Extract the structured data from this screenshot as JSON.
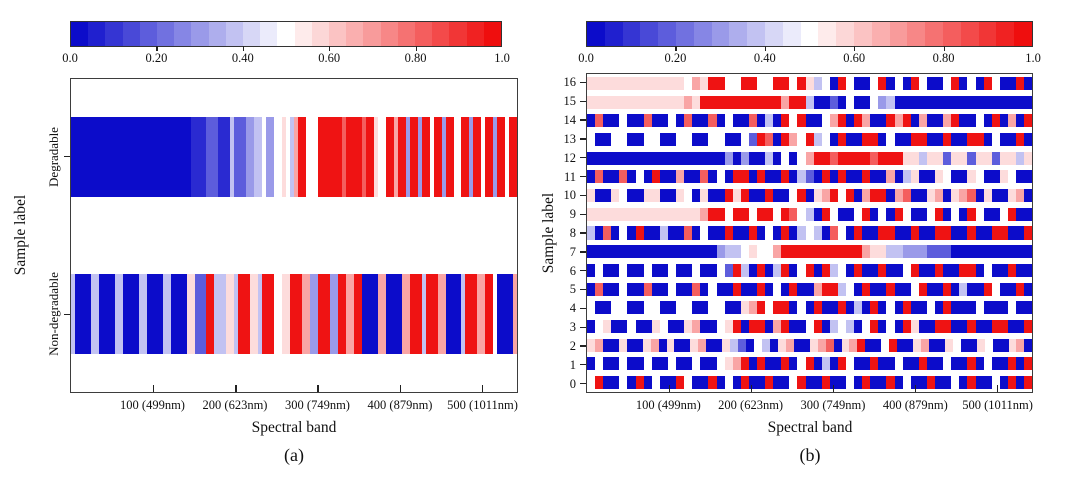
{
  "figure_title": "",
  "chart_data": [
    {
      "type": "heatmap",
      "panel": "a",
      "caption": "(a)",
      "xlabel": "Spectral band",
      "ylabel": "Sample label",
      "x_range": [
        0,
        543
      ],
      "x_tick_positions": [
        100,
        200,
        300,
        400,
        500
      ],
      "x_tick_labels": [
        "100 (499nm)",
        "200 (623nm)",
        "300 (749nm)",
        "400 (879nm)",
        "500 (1011nm)"
      ],
      "grid": false,
      "legend_position": "top-colorbar",
      "colorbar": {
        "min": 0.0,
        "max": 1.0,
        "levels": 25,
        "tick_values": [
          0.0,
          0.2,
          0.4,
          0.6,
          0.8,
          1.0
        ],
        "tick_labels": [
          "0.0",
          "0.20",
          "0.40",
          "0.60",
          "0.80",
          "1.0"
        ]
      },
      "colormap": {
        "name": "blue-white-red",
        "stops": [
          [
            0.0,
            "#0202C8"
          ],
          [
            0.5,
            "#FFFFFF"
          ],
          [
            1.0,
            "#EE0404"
          ]
        ]
      },
      "value_key": {
        "B": 0.02,
        "d": 0.08,
        "b": 0.18,
        "m": 0.3,
        "l": 0.38,
        "w": 0.5,
        "p": 0.57,
        "o": 0.68,
        "r": 0.82,
        "q": 0.9,
        "R": 0.97
      },
      "rows": [
        {
          "label": "Degradable",
          "pattern": "BBBBBBBBBBBBBBBBBBBBBBBBBBBBBBddddbbbdddlbbbmmllwmmwwpwloRRwwwRRRRRRrRRRRrRRpwwRRoRRmRRmRRwRRmRRwwRRmRRwRRmRRwRR"
        },
        {
          "label": "Non-degradable",
          "pattern": "lBBBBllBBBBllBBBBllBBBBllBBBBppbbbRRlllpplRRRpplRRRwwppRRRoommRRRmmRRooRRBBBBooBBBBooRRRlRRRooBBBBlRRRooRRwBBBBo"
        }
      ]
    },
    {
      "type": "heatmap",
      "panel": "b",
      "caption": "(b)",
      "xlabel": "Spectral band",
      "ylabel": "Sample label",
      "x_range": [
        0,
        543
      ],
      "x_tick_positions": [
        100,
        200,
        300,
        400,
        500
      ],
      "x_tick_labels": [
        "100 (499nm)",
        "200 (623nm)",
        "300 (749nm)",
        "400 (879nm)",
        "500 (1011nm)"
      ],
      "grid": false,
      "legend_position": "top-colorbar",
      "colorbar": {
        "min": 0.0,
        "max": 1.0,
        "levels": 25,
        "tick_values": [
          0.0,
          0.2,
          0.4,
          0.6,
          0.8,
          1.0
        ],
        "tick_labels": [
          "0.0",
          "0.20",
          "0.40",
          "0.60",
          "0.80",
          "1.0"
        ]
      },
      "colormap": {
        "name": "blue-white-red",
        "stops": [
          [
            0.0,
            "#0202C8"
          ],
          [
            0.5,
            "#FFFFFF"
          ],
          [
            1.0,
            "#EE0404"
          ]
        ]
      },
      "value_key": {
        "B": 0.02,
        "d": 0.08,
        "b": 0.18,
        "m": 0.3,
        "l": 0.38,
        "w": 0.5,
        "p": 0.57,
        "o": 0.68,
        "r": 0.82,
        "q": 0.9,
        "R": 0.97
      },
      "rows": [
        {
          "label": "16",
          "pattern": "ppppppppppppwopRRwwRRwwRRwRplwBRwBBwRBwBRwBBwRBwBRwBBRB"
        },
        {
          "label": "15",
          "pattern": "ppppppppppppopRRRRRRRRRRoRRlBBbBwBBwmlBBBBBBBBBBBBBBBBB"
        },
        {
          "label": "14",
          "pattern": "BrBBwBBrBBwBrBBrBwBBrBlBRwRBBwoRBRoBBRoRBoBBoRBBwBRBoBR"
        },
        {
          "label": "13",
          "pattern": "wBBwwBBwwBBwwBBwwBBwbRrBRowRlwBRBBRRBwBBRRBBRBBRRBwBBRB"
        },
        {
          "label": "12",
          "pattern": "BBBBBBBBBBBBBBBBBmBmBBlBwBwoRRrRRRRrRRRpplppbppbppbpplp"
        },
        {
          "label": "11",
          "pattern": "BrBBrBwBRBBoBBrBwBRRBRBBRBlbBRBRBBRBBoBlpBBpwBBpwBBpwBB"
        },
        {
          "label": "10",
          "pattern": "pBBpwBBppBBpwBpBBRpRBBRBBwRBpoRwRBoRRBorBBpoBporBpBBpoB"
        },
        {
          "label": "9",
          "pattern": "ppppppppppppppoRRwRRwRRwRrwlBRwBBwRBwBRwBBwRBwBRwBBwRBB"
        },
        {
          "label": "8",
          "pattern": "lBrBwBRBBlBBrBwBBRBBRBwBRBlwlBrwBRBBRRBBRBBRRBBRBBRRBBR"
        },
        {
          "label": "7",
          "pattern": "BBBBBBBBBBBBBBBBmllwpwwoRRRRRRRRRRoppllmmmbbbBBBBBBBBBB"
        },
        {
          "label": "6",
          "pattern": "BwBBwBBwBBwBBwBBwbRlBRBlRBwRBRlwBRBBRBBwRBBRBBRRBwBBRBB"
        },
        {
          "label": "5",
          "pattern": "BrBBwBBrBBwBBrBwBBRBBRBwBRBBoRRlwBRBBRBBwRBBRBlBBRwBBRB"
        },
        {
          "label": "4",
          "pattern": "wBBwwBBwwBBwwBBwwBBpoRwRRBwBRBBRBlBRBwBRBBwBRBBBwBBBwBB"
        },
        {
          "label": "3",
          "pattern": "BwpBBwBBpwBBpoBBwpRBRRBoRBBwRBlwlBwRBwBRpBBRRBBRBBRRBBR"
        },
        {
          "label": "2",
          "pattern": "poBBpBBpoBpBBpoBBplbBwlBpoBBporBpoRBBwRBBpoBBpwBBpwBBpoB"
        },
        {
          "label": "1",
          "pattern": "BwBBwBBwBBwBBwBBwpoRBRBBRBwRBlBRwBBRBBwBBRBBwBBRBwBBRBR"
        },
        {
          "label": "0",
          "pattern": "wRBBwBRBwBBRwBBRBwBRBBRBBwRBBRBBwBRBBRBwBBRBBwBRBBwBRBR"
        }
      ]
    }
  ]
}
